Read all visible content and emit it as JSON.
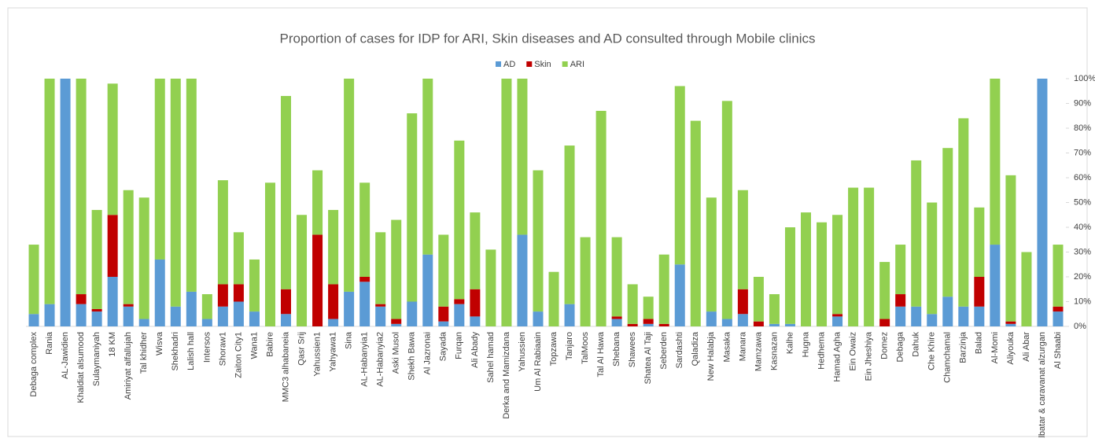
{
  "chart_data": {
    "type": "stacked_bar",
    "title": "Proportion of cases for IDP for ARI, Skin diseases and AD consulted through Mobile clinics",
    "categories": [
      "Debaga complex",
      "Rania",
      "AL-Jawidien",
      "Khaldiat alsumood",
      "Sulaymaniyah",
      "18 KM",
      "Amiriyat alfallujah",
      "Tal khidher",
      "Wisva",
      "Shekhadri",
      "Lalish hall",
      "Intersos",
      "Shoraw1",
      "Zaiton City1",
      "Wana1",
      "Babire",
      "MMC3 alhabaneia",
      "Qasr Srij",
      "Yahussien1",
      "Yahyawa1",
      "Sina",
      "AL-Habanyia1",
      "AL-Habanyia2",
      "Aski Musol",
      "Shekh Bawa",
      "Al Jazronai",
      "Sayada",
      "Furqan",
      "Ali Abady",
      "Sahel hamad",
      "Derka and Mamizdana",
      "Yahussien",
      "Um Al Rabiaain",
      "Topzawa",
      "Tanjaro",
      "TalMoos",
      "Tal Al Hawa",
      "Shebana",
      "Shawees",
      "Shatea Al Taji",
      "Seberden",
      "Sardashti",
      "Qaladiza",
      "New Halabja",
      "Masaka",
      "Manara",
      "Mamzawa",
      "Kasnazan",
      "Kalhe",
      "Hugna",
      "Hedhema",
      "Hamad Agha",
      "Ein Owaiz",
      "Ein Jheshiya",
      "Domez",
      "Debaga",
      "Dahuk",
      "Che Khire",
      "Chamchamal",
      "Barzinja",
      "Balad",
      "Al-Momi",
      "Aliyouka",
      "Ali Abar",
      "Albatar & caravanat alzurgan",
      "Al Shaabi"
    ],
    "series": [
      {
        "name": "AD",
        "color": "#5b9bd5",
        "values": [
          5,
          9,
          100,
          9,
          6,
          20,
          8,
          3,
          27,
          8,
          14,
          3,
          8,
          10,
          6,
          0,
          5,
          0,
          0,
          3,
          14,
          18,
          8,
          1,
          10,
          29,
          2,
          9,
          4,
          0,
          0,
          37,
          6,
          0,
          9,
          0,
          0,
          3,
          0,
          1,
          0,
          25,
          0,
          6,
          3,
          5,
          0,
          1,
          1,
          0,
          0,
          4,
          0,
          0,
          0,
          8,
          8,
          5,
          12,
          8,
          8,
          33,
          1,
          0,
          100,
          6
        ]
      },
      {
        "name": "Skin",
        "color": "#c00000",
        "values": [
          0,
          0,
          0,
          4,
          1,
          25,
          1,
          0,
          0,
          0,
          0,
          0,
          9,
          7,
          0,
          0,
          10,
          0,
          37,
          14,
          0,
          2,
          1,
          2,
          0,
          0,
          6,
          2,
          11,
          0,
          0,
          0,
          0,
          0,
          0,
          0,
          0,
          1,
          1,
          2,
          1,
          0,
          0,
          0,
          0,
          10,
          2,
          0,
          0,
          0,
          0,
          1,
          0,
          0,
          3,
          5,
          0,
          0,
          0,
          0,
          12,
          0,
          1,
          0,
          0,
          2
        ]
      },
      {
        "name": "ARI",
        "color": "#92d050",
        "values": [
          28,
          91,
          0,
          87,
          40,
          53,
          46,
          49,
          73,
          92,
          86,
          10,
          42,
          21,
          21,
          58,
          78,
          45,
          26,
          30,
          86,
          38,
          29,
          40,
          76,
          71,
          29,
          64,
          31,
          31,
          100,
          63,
          57,
          22,
          64,
          36,
          87,
          32,
          16,
          9,
          28,
          72,
          83,
          46,
          88,
          40,
          18,
          12,
          39,
          46,
          42,
          40,
          56,
          56,
          23,
          20,
          59,
          45,
          60,
          76,
          28,
          67,
          59,
          30,
          0,
          25
        ]
      }
    ],
    "ylim": [
      0,
      100
    ],
    "yticks": [
      {
        "value": 0,
        "label": "0%"
      },
      {
        "value": 10,
        "label": "10%"
      },
      {
        "value": 20,
        "label": "20%"
      },
      {
        "value": 30,
        "label": "30%"
      },
      {
        "value": 40,
        "label": "40%"
      },
      {
        "value": 50,
        "label": "50%"
      },
      {
        "value": 60,
        "label": "60%"
      },
      {
        "value": 70,
        "label": "70%"
      },
      {
        "value": 80,
        "label": "80%"
      },
      {
        "value": 90,
        "label": "90%"
      },
      {
        "value": 100,
        "label": "100%"
      }
    ],
    "legend": "top"
  }
}
